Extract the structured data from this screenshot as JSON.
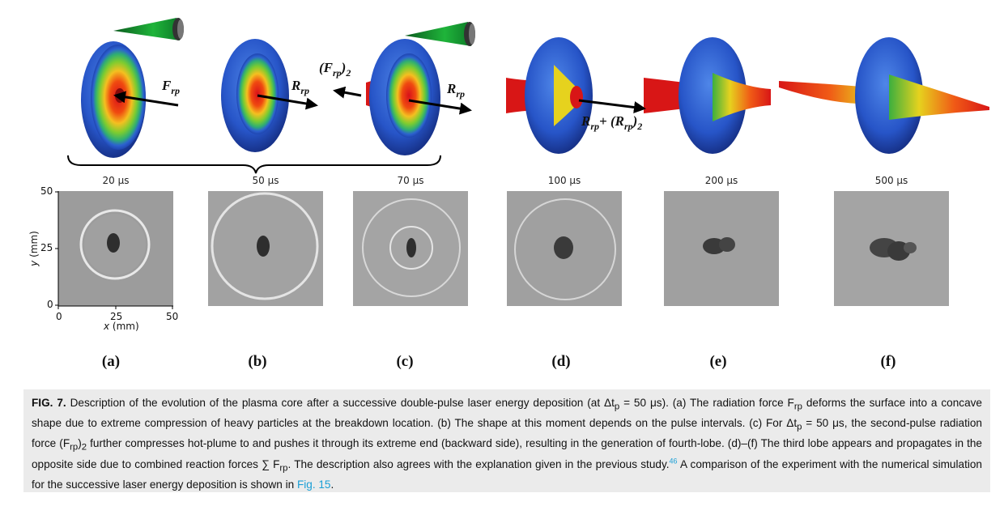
{
  "figure": {
    "vector_labels": {
      "a": "F",
      "a_sub": "rp",
      "b": "R",
      "b_sub": "rp",
      "c_left": "(F",
      "c_left_sub": "rp",
      "c_left_tail": ")",
      "c_left_tail_sub": "2",
      "c_right": "R",
      "c_right_sub": "rp",
      "d": "R",
      "d_sub": "rp",
      "d_plus": "+ (R",
      "d_plus_sub": "rp",
      "d_tail": ")",
      "d_tail_sub": "2"
    },
    "times": [
      "20 μs",
      "50 μs",
      "70 μs",
      "100 μs",
      "200 μs",
      "500 μs"
    ],
    "panel_letters": [
      "(a)",
      "(b)",
      "(c)",
      "(d)",
      "(e)",
      "(f)"
    ],
    "axes": {
      "y_ticks": [
        "50",
        "25",
        "0"
      ],
      "x_ticks": [
        "0",
        "25",
        "50"
      ],
      "y_label": "y",
      "y_unit": " (mm)",
      "x_label": "x",
      "x_unit": " (mm)"
    }
  },
  "caption": {
    "label": "FIG. 7.",
    "part1": " Description of the evolution of the plasma core after a successive double-pulse laser energy deposition (at Δt",
    "part1_sub": "p",
    "part2": " = 50 μs). (a) The radiation force F",
    "part2_sub": "rp",
    "part3": " deforms the surface into a concave shape due to extreme compression of heavy particles at the breakdown location. (b) The shape at this moment depends on the pulse intervals. (c) For Δt",
    "part3_sub": "p",
    "part4": " = 50 μs, the second-pulse radiation force (F",
    "part4_sub": "rp",
    "part5": ")",
    "part5_sub": "2",
    "part6": " further compresses hot-plume to and pushes it through its extreme end (backward side), resulting in the generation of fourth-lobe. (d)–(f) The third lobe appears and propagates in the opposite side due to combined reaction forces ∑ F",
    "part6_sub": "rp",
    "part7": ". The description also agrees with the explanation given in the previous study.",
    "ref_num": "46",
    "part8": " A comparison of the experiment with the numerical simulation for the successive laser energy deposition is shown in ",
    "fig_ref": "Fig. 15",
    "part9": "."
  }
}
